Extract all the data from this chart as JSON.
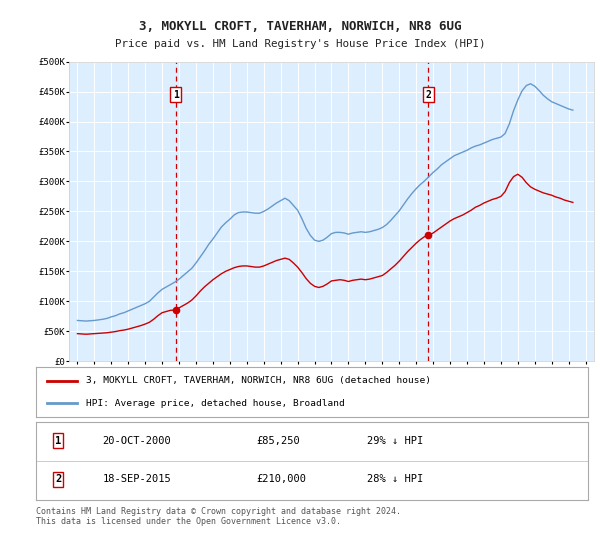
{
  "title": "3, MOKYLL CROFT, TAVERHAM, NORWICH, NR8 6UG",
  "subtitle": "Price paid vs. HM Land Registry's House Price Index (HPI)",
  "legend_label_red": "3, MOKYLL CROFT, TAVERHAM, NORWICH, NR8 6UG (detached house)",
  "legend_label_blue": "HPI: Average price, detached house, Broadland",
  "footer": "Contains HM Land Registry data © Crown copyright and database right 2024.\nThis data is licensed under the Open Government Licence v3.0.",
  "sale1_label": "1",
  "sale1_date": "20-OCT-2000",
  "sale1_price": "£85,250",
  "sale1_hpi": "29% ↓ HPI",
  "sale1_year": 2000.8,
  "sale1_value": 85250,
  "sale2_label": "2",
  "sale2_date": "18-SEP-2015",
  "sale2_price": "£210,000",
  "sale2_hpi": "28% ↓ HPI",
  "sale2_year": 2015.72,
  "sale2_value": 210000,
  "ylim": [
    0,
    500000
  ],
  "yticks": [
    0,
    50000,
    100000,
    150000,
    200000,
    250000,
    300000,
    350000,
    400000,
    450000,
    500000
  ],
  "ytick_labels": [
    "£0",
    "£50K",
    "£100K",
    "£150K",
    "£200K",
    "£250K",
    "£300K",
    "£350K",
    "£400K",
    "£450K",
    "£500K"
  ],
  "xlim_start": 1994.5,
  "xlim_end": 2025.5,
  "plot_bg_color": "#ddeeff",
  "red_line_color": "#cc0000",
  "blue_line_color": "#6699cc",
  "vline_color": "#cc0000",
  "grid_color": "#ffffff",
  "sale_marker_color": "#cc0000",
  "fig_bg_color": "#ffffff",
  "hpi_data_years": [
    1995.0,
    1995.25,
    1995.5,
    1995.75,
    1996.0,
    1996.25,
    1996.5,
    1996.75,
    1997.0,
    1997.25,
    1997.5,
    1997.75,
    1998.0,
    1998.25,
    1998.5,
    1998.75,
    1999.0,
    1999.25,
    1999.5,
    1999.75,
    2000.0,
    2000.25,
    2000.5,
    2000.75,
    2001.0,
    2001.25,
    2001.5,
    2001.75,
    2002.0,
    2002.25,
    2002.5,
    2002.75,
    2003.0,
    2003.25,
    2003.5,
    2003.75,
    2004.0,
    2004.25,
    2004.5,
    2004.75,
    2005.0,
    2005.25,
    2005.5,
    2005.75,
    2006.0,
    2006.25,
    2006.5,
    2006.75,
    2007.0,
    2007.25,
    2007.5,
    2007.75,
    2008.0,
    2008.25,
    2008.5,
    2008.75,
    2009.0,
    2009.25,
    2009.5,
    2009.75,
    2010.0,
    2010.25,
    2010.5,
    2010.75,
    2011.0,
    2011.25,
    2011.5,
    2011.75,
    2012.0,
    2012.25,
    2012.5,
    2012.75,
    2013.0,
    2013.25,
    2013.5,
    2013.75,
    2014.0,
    2014.25,
    2014.5,
    2014.75,
    2015.0,
    2015.25,
    2015.5,
    2015.75,
    2016.0,
    2016.25,
    2016.5,
    2016.75,
    2017.0,
    2017.25,
    2017.5,
    2017.75,
    2018.0,
    2018.25,
    2018.5,
    2018.75,
    2019.0,
    2019.25,
    2019.5,
    2019.75,
    2020.0,
    2020.25,
    2020.5,
    2020.75,
    2021.0,
    2021.25,
    2021.5,
    2021.75,
    2022.0,
    2022.25,
    2022.5,
    2022.75,
    2023.0,
    2023.25,
    2023.5,
    2023.75,
    2024.0,
    2024.25
  ],
  "hpi_values": [
    68000,
    67500,
    67000,
    67500,
    68000,
    69000,
    70000,
    71500,
    74000,
    76000,
    79000,
    81000,
    84000,
    87000,
    90000,
    93000,
    96000,
    100000,
    107000,
    114000,
    120000,
    124000,
    128000,
    132000,
    137000,
    143000,
    149000,
    155000,
    164000,
    174000,
    184000,
    195000,
    204000,
    214000,
    224000,
    231000,
    237000,
    244000,
    248000,
    249000,
    249000,
    248000,
    247000,
    247000,
    250000,
    254000,
    259000,
    264000,
    268000,
    272000,
    268000,
    260000,
    252000,
    238000,
    222000,
    210000,
    202000,
    200000,
    202000,
    207000,
    213000,
    215000,
    215000,
    214000,
    212000,
    214000,
    215000,
    216000,
    215000,
    216000,
    218000,
    220000,
    223000,
    228000,
    235000,
    243000,
    251000,
    261000,
    271000,
    280000,
    288000,
    295000,
    301000,
    308000,
    315000,
    321000,
    328000,
    333000,
    338000,
    343000,
    346000,
    349000,
    352000,
    356000,
    359000,
    361000,
    364000,
    367000,
    370000,
    372000,
    374000,
    380000,
    396000,
    418000,
    436000,
    451000,
    460000,
    463000,
    459000,
    452000,
    444000,
    438000,
    433000,
    430000,
    427000,
    424000,
    421000,
    419000
  ],
  "red_data_years": [
    1995.0,
    1995.25,
    1995.5,
    1995.75,
    1996.0,
    1996.25,
    1996.5,
    1996.75,
    1997.0,
    1997.25,
    1997.5,
    1997.75,
    1998.0,
    1998.25,
    1998.5,
    1998.75,
    1999.0,
    1999.25,
    1999.5,
    1999.75,
    2000.0,
    2000.25,
    2000.5,
    2000.75,
    2001.0,
    2001.25,
    2001.5,
    2001.75,
    2002.0,
    2002.25,
    2002.5,
    2002.75,
    2003.0,
    2003.25,
    2003.5,
    2003.75,
    2004.0,
    2004.25,
    2004.5,
    2004.75,
    2005.0,
    2005.25,
    2005.5,
    2005.75,
    2006.0,
    2006.25,
    2006.5,
    2006.75,
    2007.0,
    2007.25,
    2007.5,
    2007.75,
    2008.0,
    2008.25,
    2008.5,
    2008.75,
    2009.0,
    2009.25,
    2009.5,
    2009.75,
    2010.0,
    2010.25,
    2010.5,
    2010.75,
    2011.0,
    2011.25,
    2011.5,
    2011.75,
    2012.0,
    2012.25,
    2012.5,
    2012.75,
    2013.0,
    2013.25,
    2013.5,
    2013.75,
    2014.0,
    2014.25,
    2014.5,
    2014.75,
    2015.0,
    2015.25,
    2015.5,
    2015.75,
    2016.0,
    2016.25,
    2016.5,
    2016.75,
    2017.0,
    2017.25,
    2017.5,
    2017.75,
    2018.0,
    2018.25,
    2018.5,
    2018.75,
    2019.0,
    2019.25,
    2019.5,
    2019.75,
    2020.0,
    2020.25,
    2020.5,
    2020.75,
    2021.0,
    2021.25,
    2021.5,
    2021.75,
    2022.0,
    2022.25,
    2022.5,
    2022.75,
    2023.0,
    2023.25,
    2023.5,
    2023.75,
    2024.0,
    2024.25
  ],
  "red_values": [
    46000,
    45500,
    45000,
    45500,
    46000,
    46500,
    47000,
    47500,
    48500,
    49500,
    51000,
    52000,
    53500,
    55500,
    57500,
    59500,
    62000,
    65000,
    70000,
    76000,
    81000,
    83000,
    85000,
    85250,
    89000,
    93000,
    97000,
    102000,
    109000,
    117000,
    124000,
    130000,
    136000,
    141000,
    146000,
    150000,
    153000,
    156000,
    158000,
    159000,
    159000,
    158000,
    157000,
    157000,
    159000,
    162000,
    165000,
    168000,
    170000,
    172000,
    170000,
    164000,
    157000,
    148000,
    138000,
    130000,
    125000,
    123000,
    125000,
    129000,
    134000,
    135000,
    136000,
    135000,
    133000,
    135000,
    136000,
    137000,
    136000,
    137000,
    139000,
    141000,
    143000,
    148000,
    154000,
    160000,
    167000,
    175000,
    183000,
    190000,
    197000,
    203000,
    208000,
    210000,
    214000,
    219000,
    224000,
    229000,
    234000,
    238000,
    241000,
    244000,
    248000,
    252000,
    257000,
    260000,
    264000,
    267000,
    270000,
    272000,
    275000,
    283000,
    298000,
    308000,
    312000,
    307000,
    298000,
    291000,
    287000,
    284000,
    281000,
    279000,
    277000,
    274000,
    272000,
    269000,
    267000,
    265000
  ]
}
